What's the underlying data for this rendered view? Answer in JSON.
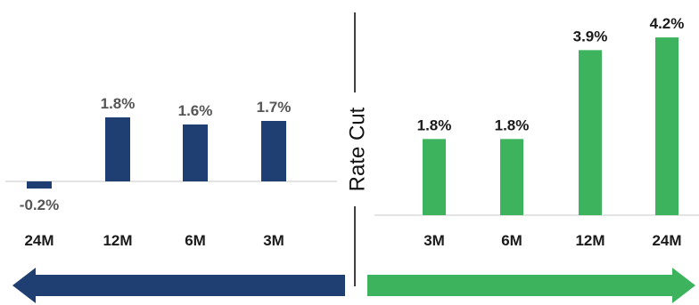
{
  "chart_data": [
    {
      "type": "bar",
      "categories": [
        "24M",
        "12M",
        "6M",
        "3M"
      ],
      "values": [
        -0.2,
        1.8,
        1.6,
        1.7
      ],
      "value_labels": [
        "-0.2%",
        "1.8%",
        "1.6%",
        "1.7%"
      ],
      "color": "#1F3F73",
      "label_color": "#555555",
      "title": "",
      "xlabel": "",
      "ylabel": "",
      "ylim": [
        -0.3,
        2.0
      ],
      "grid": false,
      "arrow_direction": "left"
    },
    {
      "type": "bar",
      "categories": [
        "3M",
        "6M",
        "12M",
        "24M"
      ],
      "values": [
        1.8,
        1.8,
        3.9,
        4.2
      ],
      "value_labels": [
        "1.8%",
        "1.8%",
        "3.9%",
        "4.2%"
      ],
      "color": "#3DB35E",
      "label_color": "#1a1a1a",
      "title": "",
      "xlabel": "",
      "ylabel": "",
      "ylim": [
        0,
        4.3
      ],
      "grid": false,
      "arrow_direction": "right"
    }
  ],
  "divider": {
    "label": "Rate Cut"
  }
}
